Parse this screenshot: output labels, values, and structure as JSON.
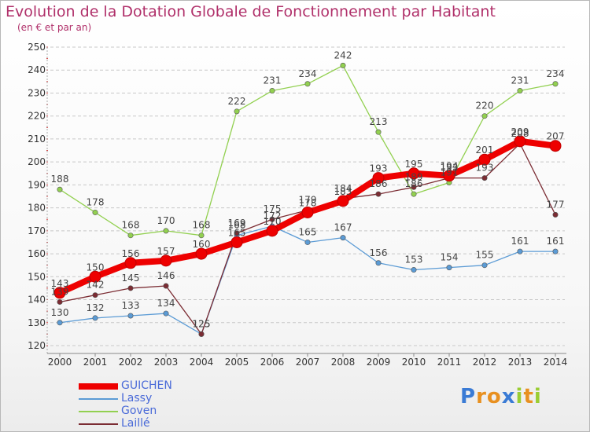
{
  "title": "Evolution de la Dotation Globale de Fonctionnement par Habitant",
  "subtitle": "(en € et par an)",
  "logo": "Proxiti",
  "chart_data": {
    "type": "line",
    "title": "Evolution de la Dotation Globale de Fonctionnement par Habitant",
    "subtitle": "(en € et par an)",
    "x": [
      2000,
      2001,
      2002,
      2003,
      2004,
      2005,
      2006,
      2007,
      2008,
      2009,
      2010,
      2011,
      2012,
      2013,
      2014
    ],
    "ylim": [
      120,
      250
    ],
    "yticks": [
      120,
      130,
      140,
      150,
      160,
      170,
      180,
      190,
      200,
      210,
      220,
      230,
      240,
      250
    ],
    "grid": "horizontal dashed",
    "legend_position": "bottom-left",
    "series": [
      {
        "name": "GUICHEN",
        "color": "#ee0000",
        "values": [
          143,
          150,
          156,
          157,
          160,
          165,
          170,
          178,
          183,
          193,
          195,
          194,
          201,
          209,
          207
        ]
      },
      {
        "name": "Lassy",
        "color": "#5b9bd5",
        "values": [
          130,
          132,
          133,
          134,
          125,
          168,
          172,
          165,
          167,
          156,
          153,
          154,
          155,
          161,
          161
        ]
      },
      {
        "name": "Goven",
        "color": "#92d050",
        "values": [
          188,
          178,
          168,
          170,
          168,
          222,
          231,
          234,
          242,
          213,
          186,
          191,
          220,
          231,
          234
        ]
      },
      {
        "name": "Laillé",
        "color": "#7b2c33",
        "values": [
          139,
          142,
          145,
          146,
          125,
          169,
          175,
          179,
          184,
          186,
          189,
          193,
          193,
          208,
          177
        ]
      }
    ]
  }
}
